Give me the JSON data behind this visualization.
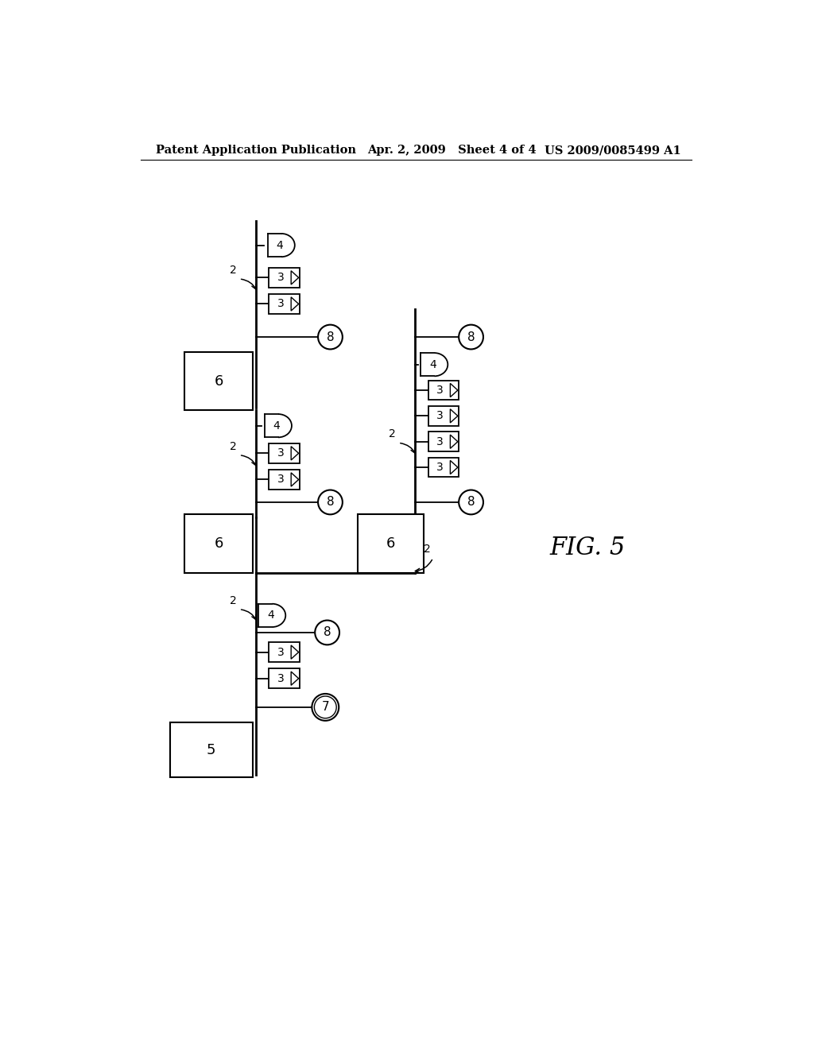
{
  "title_left": "Patent Application Publication",
  "title_center": "Apr. 2, 2009   Sheet 4 of 4",
  "title_right": "US 2009/0085499 A1",
  "fig_label": "FIG. 5",
  "background_color": "#ffffff",
  "line_color": "#000000"
}
